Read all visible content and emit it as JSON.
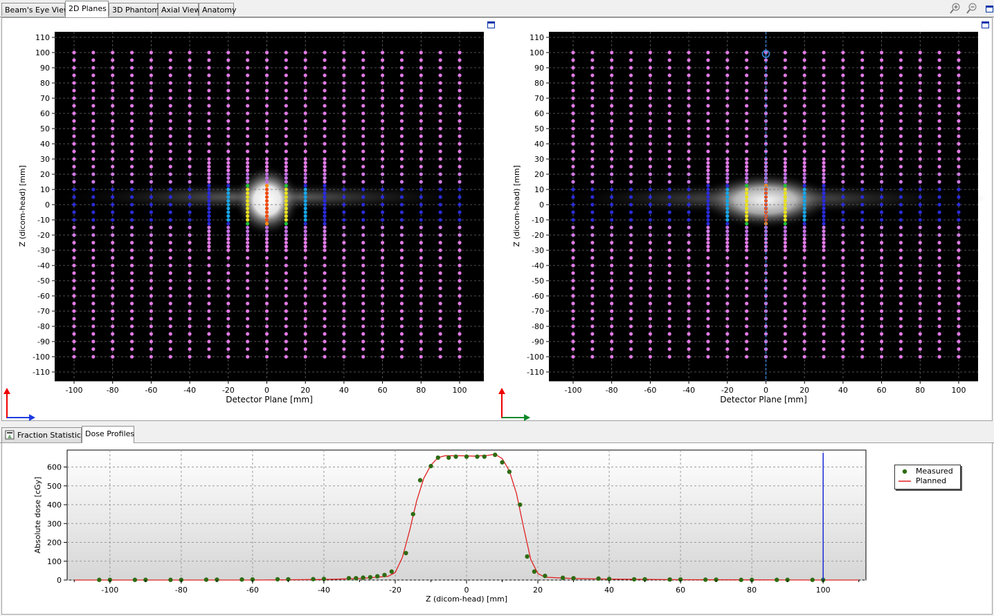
{
  "tabs": [
    "Beam's Eye View",
    "2D Planes",
    "3D Phantom",
    "Axial View",
    "Anatomy"
  ],
  "active_tab": "2D Planes",
  "toolbar": {
    "zoom_in": "zoom-in-icon",
    "zoom_out": "zoom-out-icon",
    "maximize": "maximize-icon"
  },
  "plots": {
    "left": {
      "xlabel": "Detector Plane [mm]",
      "ylabel": "Z (dicom-head) [mm]"
    },
    "right": {
      "xlabel": "Detector Plane [mm]",
      "ylabel": "Z (dicom-head) [mm]",
      "cursor_x": 0
    }
  },
  "plane_axes": {
    "x_ticks": [
      -100,
      -80,
      -60,
      -40,
      -20,
      0,
      20,
      40,
      60,
      80,
      100
    ],
    "y_ticks": [
      110,
      100,
      90,
      80,
      70,
      60,
      50,
      40,
      30,
      20,
      10,
      0,
      -10,
      -20,
      -30,
      -40,
      -50,
      -60,
      -70,
      -80,
      -90,
      -100,
      -110
    ]
  },
  "bottom_tabs": [
    "Fraction Statistics",
    "Dose Profiles"
  ],
  "active_bottom_tab": "Dose Profiles",
  "chart_data": {
    "type": "line",
    "xlabel": "Z (dicom-head) [mm]",
    "ylabel": "Absolute dose [cGy]",
    "xlim": [
      -112,
      112
    ],
    "ylim": [
      0,
      690
    ],
    "x_ticks": [
      -100,
      -80,
      -60,
      -40,
      -20,
      0,
      20,
      40,
      60,
      80,
      100
    ],
    "y_ticks": [
      0,
      100,
      200,
      300,
      400,
      500,
      600
    ],
    "cursor_x": 100,
    "series": [
      {
        "name": "Measured",
        "kind": "scatter",
        "color": "#2e6b12",
        "points": [
          [
            -103,
            1
          ],
          [
            -100,
            1
          ],
          [
            -93,
            1
          ],
          [
            -90,
            1
          ],
          [
            -83,
            1
          ],
          [
            -80,
            1
          ],
          [
            -73,
            2
          ],
          [
            -70,
            2
          ],
          [
            -63,
            3
          ],
          [
            -60,
            3
          ],
          [
            -53,
            4
          ],
          [
            -50,
            4
          ],
          [
            -43,
            5
          ],
          [
            -40,
            6
          ],
          [
            -33,
            10
          ],
          [
            -31,
            10
          ],
          [
            -29,
            13
          ],
          [
            -27,
            15
          ],
          [
            -25,
            20
          ],
          [
            -23,
            27
          ],
          [
            -21,
            45
          ],
          [
            -17,
            143
          ],
          [
            -15,
            350
          ],
          [
            -13,
            530
          ],
          [
            -10,
            605
          ],
          [
            -8,
            650
          ],
          [
            -5,
            650
          ],
          [
            -3,
            655
          ],
          [
            0,
            655
          ],
          [
            3,
            655
          ],
          [
            5,
            655
          ],
          [
            8,
            665
          ],
          [
            10,
            625
          ],
          [
            12,
            575
          ],
          [
            15,
            400
          ],
          [
            17,
            125
          ],
          [
            19,
            45
          ],
          [
            22,
            22
          ],
          [
            27,
            12
          ],
          [
            30,
            10
          ],
          [
            37,
            8
          ],
          [
            40,
            6
          ],
          [
            47,
            4
          ],
          [
            50,
            4
          ],
          [
            57,
            3
          ],
          [
            60,
            3
          ],
          [
            67,
            2
          ],
          [
            70,
            2
          ],
          [
            77,
            1
          ],
          [
            80,
            1
          ],
          [
            87,
            1
          ],
          [
            90,
            1
          ],
          [
            97,
            1
          ],
          [
            100,
            1
          ]
        ]
      },
      {
        "name": "Planned",
        "kind": "line",
        "color": "#e02020",
        "points": [
          [
            -110,
            0
          ],
          [
            -60,
            0
          ],
          [
            -40,
            3
          ],
          [
            -30,
            8
          ],
          [
            -22,
            20
          ],
          [
            -20,
            40
          ],
          [
            -18,
            120
          ],
          [
            -16,
            260
          ],
          [
            -14,
            420
          ],
          [
            -12,
            540
          ],
          [
            -10,
            610
          ],
          [
            -8,
            650
          ],
          [
            -6,
            660
          ],
          [
            -2,
            660
          ],
          [
            2,
            658
          ],
          [
            6,
            662
          ],
          [
            8,
            668
          ],
          [
            10,
            645
          ],
          [
            12,
            580
          ],
          [
            14,
            460
          ],
          [
            16,
            280
          ],
          [
            18,
            110
          ],
          [
            20,
            35
          ],
          [
            22,
            15
          ],
          [
            30,
            8
          ],
          [
            40,
            5
          ],
          [
            60,
            2
          ],
          [
            80,
            1
          ],
          [
            100,
            0
          ],
          [
            110,
            0
          ]
        ]
      }
    ]
  }
}
